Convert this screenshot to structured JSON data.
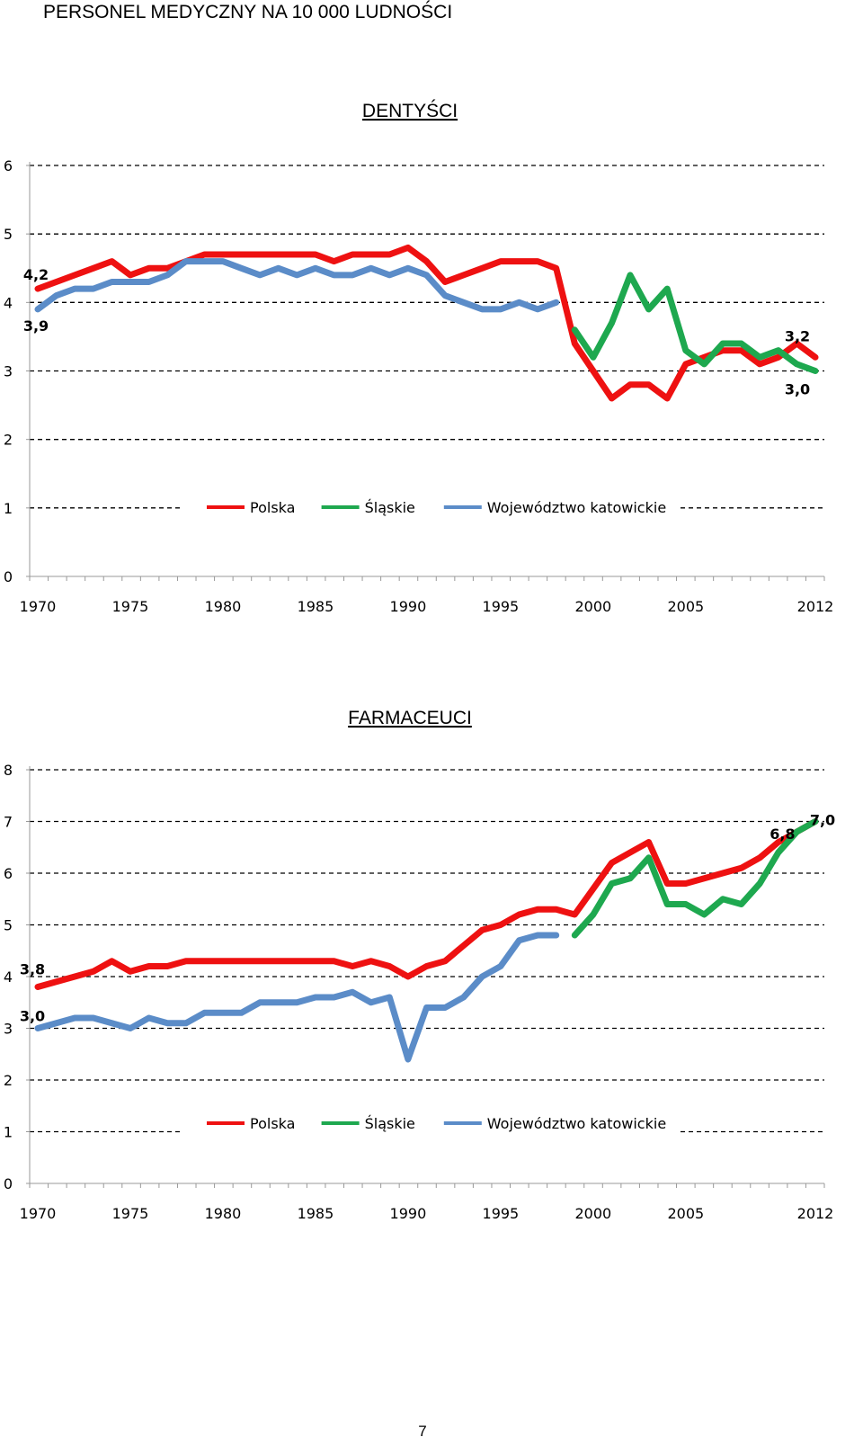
{
  "page": {
    "title": "PERSONEL MEDYCZNY NA 10 000 LUDNOŚCI",
    "page_number": "7"
  },
  "chart_data": [
    {
      "type": "line",
      "title": "DENTYŚCI",
      "xlabel": "",
      "ylabel": "",
      "ylim": [
        0,
        6
      ],
      "yticks": [
        0,
        1,
        2,
        3,
        4,
        5,
        6
      ],
      "xlim": [
        1970,
        2012
      ],
      "xticks": [
        "1970",
        "1975",
        "1980",
        "1985",
        "1990",
        "1995",
        "2000",
        "2005",
        "2012"
      ],
      "grid": "horizontal-dashed",
      "legend_position": "inside-bottom",
      "colors": {
        "Polska": "#ee1111",
        "Śląskie": "#1ea84f",
        "Województwo katowickie": "#5b8cc8"
      },
      "series": [
        {
          "name": "Polska",
          "x": [
            1970,
            1971,
            1972,
            1973,
            1974,
            1975,
            1976,
            1977,
            1978,
            1979,
            1980,
            1981,
            1982,
            1983,
            1984,
            1985,
            1986,
            1987,
            1988,
            1989,
            1990,
            1991,
            1992,
            1993,
            1994,
            1995,
            1996,
            1997,
            1998,
            1999,
            2000,
            2001,
            2002,
            2003,
            2004,
            2005,
            2006,
            2007,
            2008,
            2009,
            2010,
            2011,
            2012
          ],
          "values": [
            4.2,
            4.3,
            4.4,
            4.5,
            4.6,
            4.4,
            4.5,
            4.5,
            4.6,
            4.7,
            4.7,
            4.7,
            4.7,
            4.7,
            4.7,
            4.7,
            4.6,
            4.7,
            4.7,
            4.7,
            4.8,
            4.6,
            4.3,
            4.4,
            4.5,
            4.6,
            4.6,
            4.6,
            4.5,
            3.4,
            3.0,
            2.6,
            2.8,
            2.8,
            2.6,
            3.1,
            3.2,
            3.3,
            3.3,
            3.1,
            3.2,
            3.4,
            3.2
          ]
        },
        {
          "name": "Śląskie",
          "x": [
            1999,
            2000,
            2001,
            2002,
            2003,
            2004,
            2005,
            2006,
            2007,
            2008,
            2009,
            2010,
            2011,
            2012
          ],
          "values": [
            3.6,
            3.2,
            3.7,
            4.4,
            3.9,
            4.2,
            3.3,
            3.1,
            3.4,
            3.4,
            3.2,
            3.3,
            3.1,
            3.0
          ]
        },
        {
          "name": "Województwo katowickie",
          "x": [
            1970,
            1971,
            1972,
            1973,
            1974,
            1975,
            1976,
            1977,
            1978,
            1979,
            1980,
            1981,
            1982,
            1983,
            1984,
            1985,
            1986,
            1987,
            1988,
            1989,
            1990,
            1991,
            1992,
            1993,
            1994,
            1995,
            1996,
            1997,
            1998
          ],
          "values": [
            3.9,
            4.1,
            4.2,
            4.2,
            4.3,
            4.3,
            4.3,
            4.4,
            4.6,
            4.6,
            4.6,
            4.5,
            4.4,
            4.5,
            4.4,
            4.5,
            4.4,
            4.4,
            4.5,
            4.4,
            4.5,
            4.4,
            4.1,
            4.0,
            3.9,
            3.9,
            4.0,
            3.9,
            4.0
          ]
        }
      ],
      "annotations": [
        {
          "text": "4,2",
          "series": "Polska",
          "x": 1970,
          "y": 4.2
        },
        {
          "text": "3,9",
          "series": "Województwo katowickie",
          "x": 1970,
          "y": 3.9
        },
        {
          "text": "3,2",
          "series": "Polska",
          "x": 2012,
          "y": 3.2
        },
        {
          "text": "3,0",
          "series": "Śląskie",
          "x": 2012,
          "y": 3.0
        }
      ]
    },
    {
      "type": "line",
      "title": "FARMACEUCI",
      "xlabel": "",
      "ylabel": "",
      "ylim": [
        0,
        8
      ],
      "yticks": [
        0,
        1,
        2,
        3,
        4,
        5,
        6,
        7,
        8
      ],
      "xlim": [
        1970,
        2012
      ],
      "xticks": [
        "1970",
        "1975",
        "1980",
        "1985",
        "1990",
        "1995",
        "2000",
        "2005",
        "2012"
      ],
      "grid": "horizontal-dashed",
      "legend_position": "inside-bottom",
      "colors": {
        "Polska": "#ee1111",
        "Śląskie": "#1ea84f",
        "Województwo katowickie": "#5b8cc8"
      },
      "series": [
        {
          "name": "Polska",
          "x": [
            1970,
            1971,
            1972,
            1973,
            1974,
            1975,
            1976,
            1977,
            1978,
            1979,
            1980,
            1981,
            1982,
            1983,
            1984,
            1985,
            1986,
            1987,
            1988,
            1989,
            1990,
            1991,
            1992,
            1993,
            1994,
            1995,
            1996,
            1997,
            1998,
            1999,
            2000,
            2001,
            2002,
            2003,
            2004,
            2005,
            2006,
            2007,
            2008,
            2009,
            2010,
            2011,
            2012
          ],
          "values": [
            3.8,
            3.9,
            4.0,
            4.1,
            4.3,
            4.1,
            4.2,
            4.2,
            4.3,
            4.3,
            4.3,
            4.3,
            4.3,
            4.3,
            4.3,
            4.3,
            4.3,
            4.2,
            4.3,
            4.2,
            4.0,
            4.2,
            4.3,
            4.6,
            4.9,
            5.0,
            5.2,
            5.3,
            5.3,
            5.2,
            5.7,
            6.2,
            6.4,
            6.6,
            5.8,
            5.8,
            5.9,
            6.0,
            6.1,
            6.3,
            6.6,
            6.8,
            7.0
          ]
        },
        {
          "name": "Śląskie",
          "x": [
            1999,
            2000,
            2001,
            2002,
            2003,
            2004,
            2005,
            2006,
            2007,
            2008,
            2009,
            2010,
            2011,
            2012
          ],
          "values": [
            4.8,
            5.2,
            5.8,
            5.9,
            6.3,
            5.4,
            5.4,
            5.2,
            5.5,
            5.4,
            5.8,
            6.4,
            6.8,
            7.0
          ]
        },
        {
          "name": "Województwo katowickie",
          "x": [
            1970,
            1971,
            1972,
            1973,
            1974,
            1975,
            1976,
            1977,
            1978,
            1979,
            1980,
            1981,
            1982,
            1983,
            1984,
            1985,
            1986,
            1987,
            1988,
            1989,
            1990,
            1991,
            1992,
            1993,
            1994,
            1995,
            1996,
            1997,
            1998
          ],
          "values": [
            3.0,
            3.1,
            3.2,
            3.2,
            3.1,
            3.0,
            3.2,
            3.1,
            3.1,
            3.3,
            3.3,
            3.3,
            3.5,
            3.5,
            3.5,
            3.6,
            3.6,
            3.7,
            3.5,
            3.6,
            2.4,
            3.4,
            3.4,
            3.6,
            4.0,
            4.2,
            4.7,
            4.8,
            4.8
          ]
        }
      ],
      "annotations": [
        {
          "text": "3,8",
          "series": "Polska",
          "x": 1970,
          "y": 3.8
        },
        {
          "text": "3,0",
          "series": "Województwo katowickie",
          "x": 1970,
          "y": 3.0
        },
        {
          "text": "6,8",
          "series": "Polska",
          "x": 2011,
          "y": 6.8
        },
        {
          "text": "7,0",
          "series": "Śląskie",
          "x": 2012,
          "y": 7.0
        }
      ]
    }
  ]
}
